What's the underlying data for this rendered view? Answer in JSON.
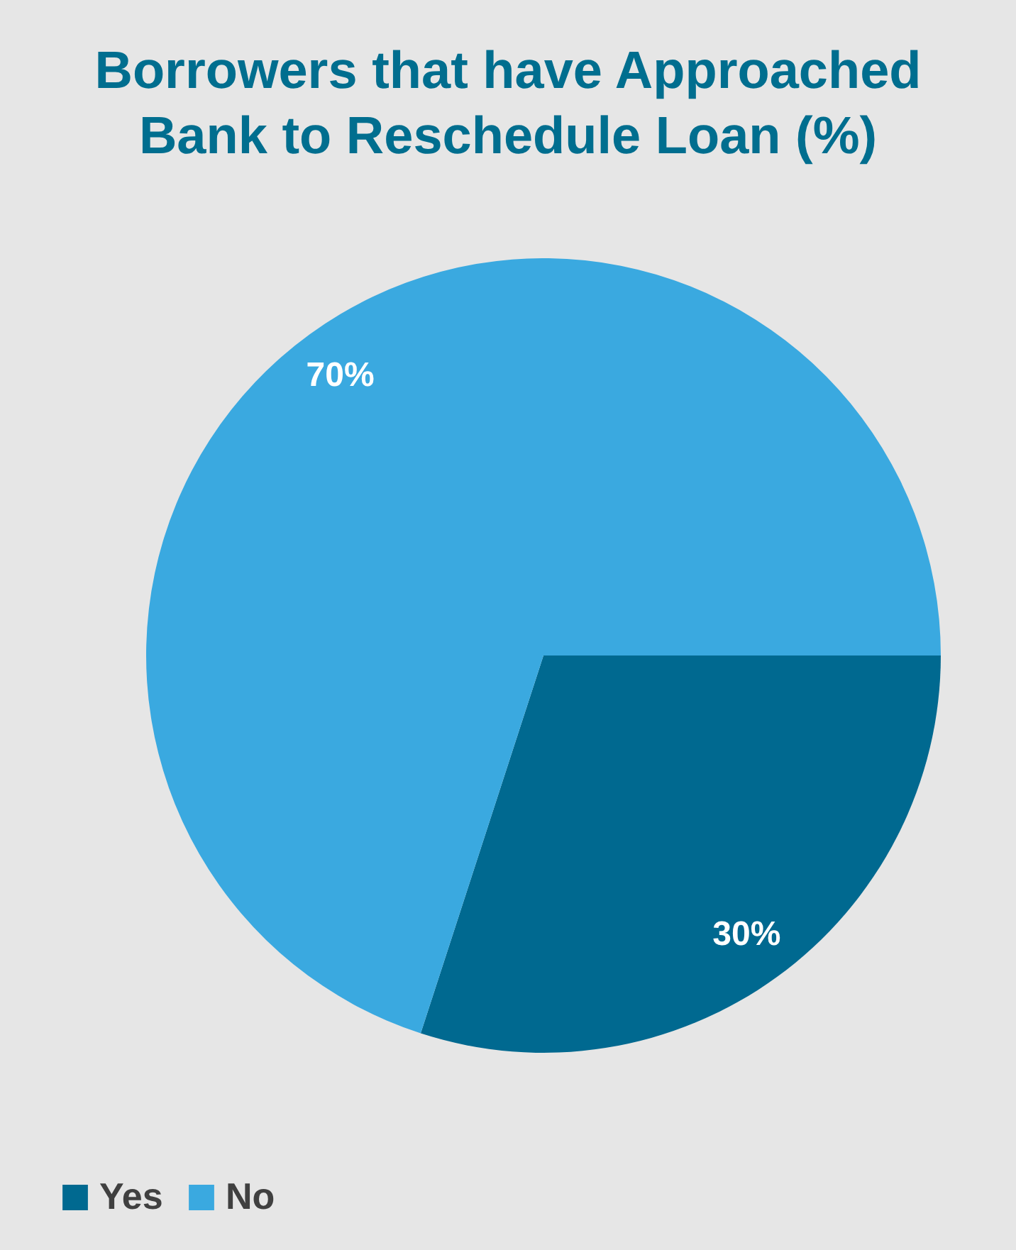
{
  "chart_data": {
    "type": "pie",
    "title": "Borrowers that have Approached Bank to Reschedule Loan (%)",
    "categories": [
      "Yes",
      "No"
    ],
    "values": [
      30,
      70
    ],
    "colors": [
      "#006990",
      "#3aa9e0"
    ],
    "value_labels": [
      "30%",
      "70%"
    ],
    "legend": "bottom left"
  }
}
